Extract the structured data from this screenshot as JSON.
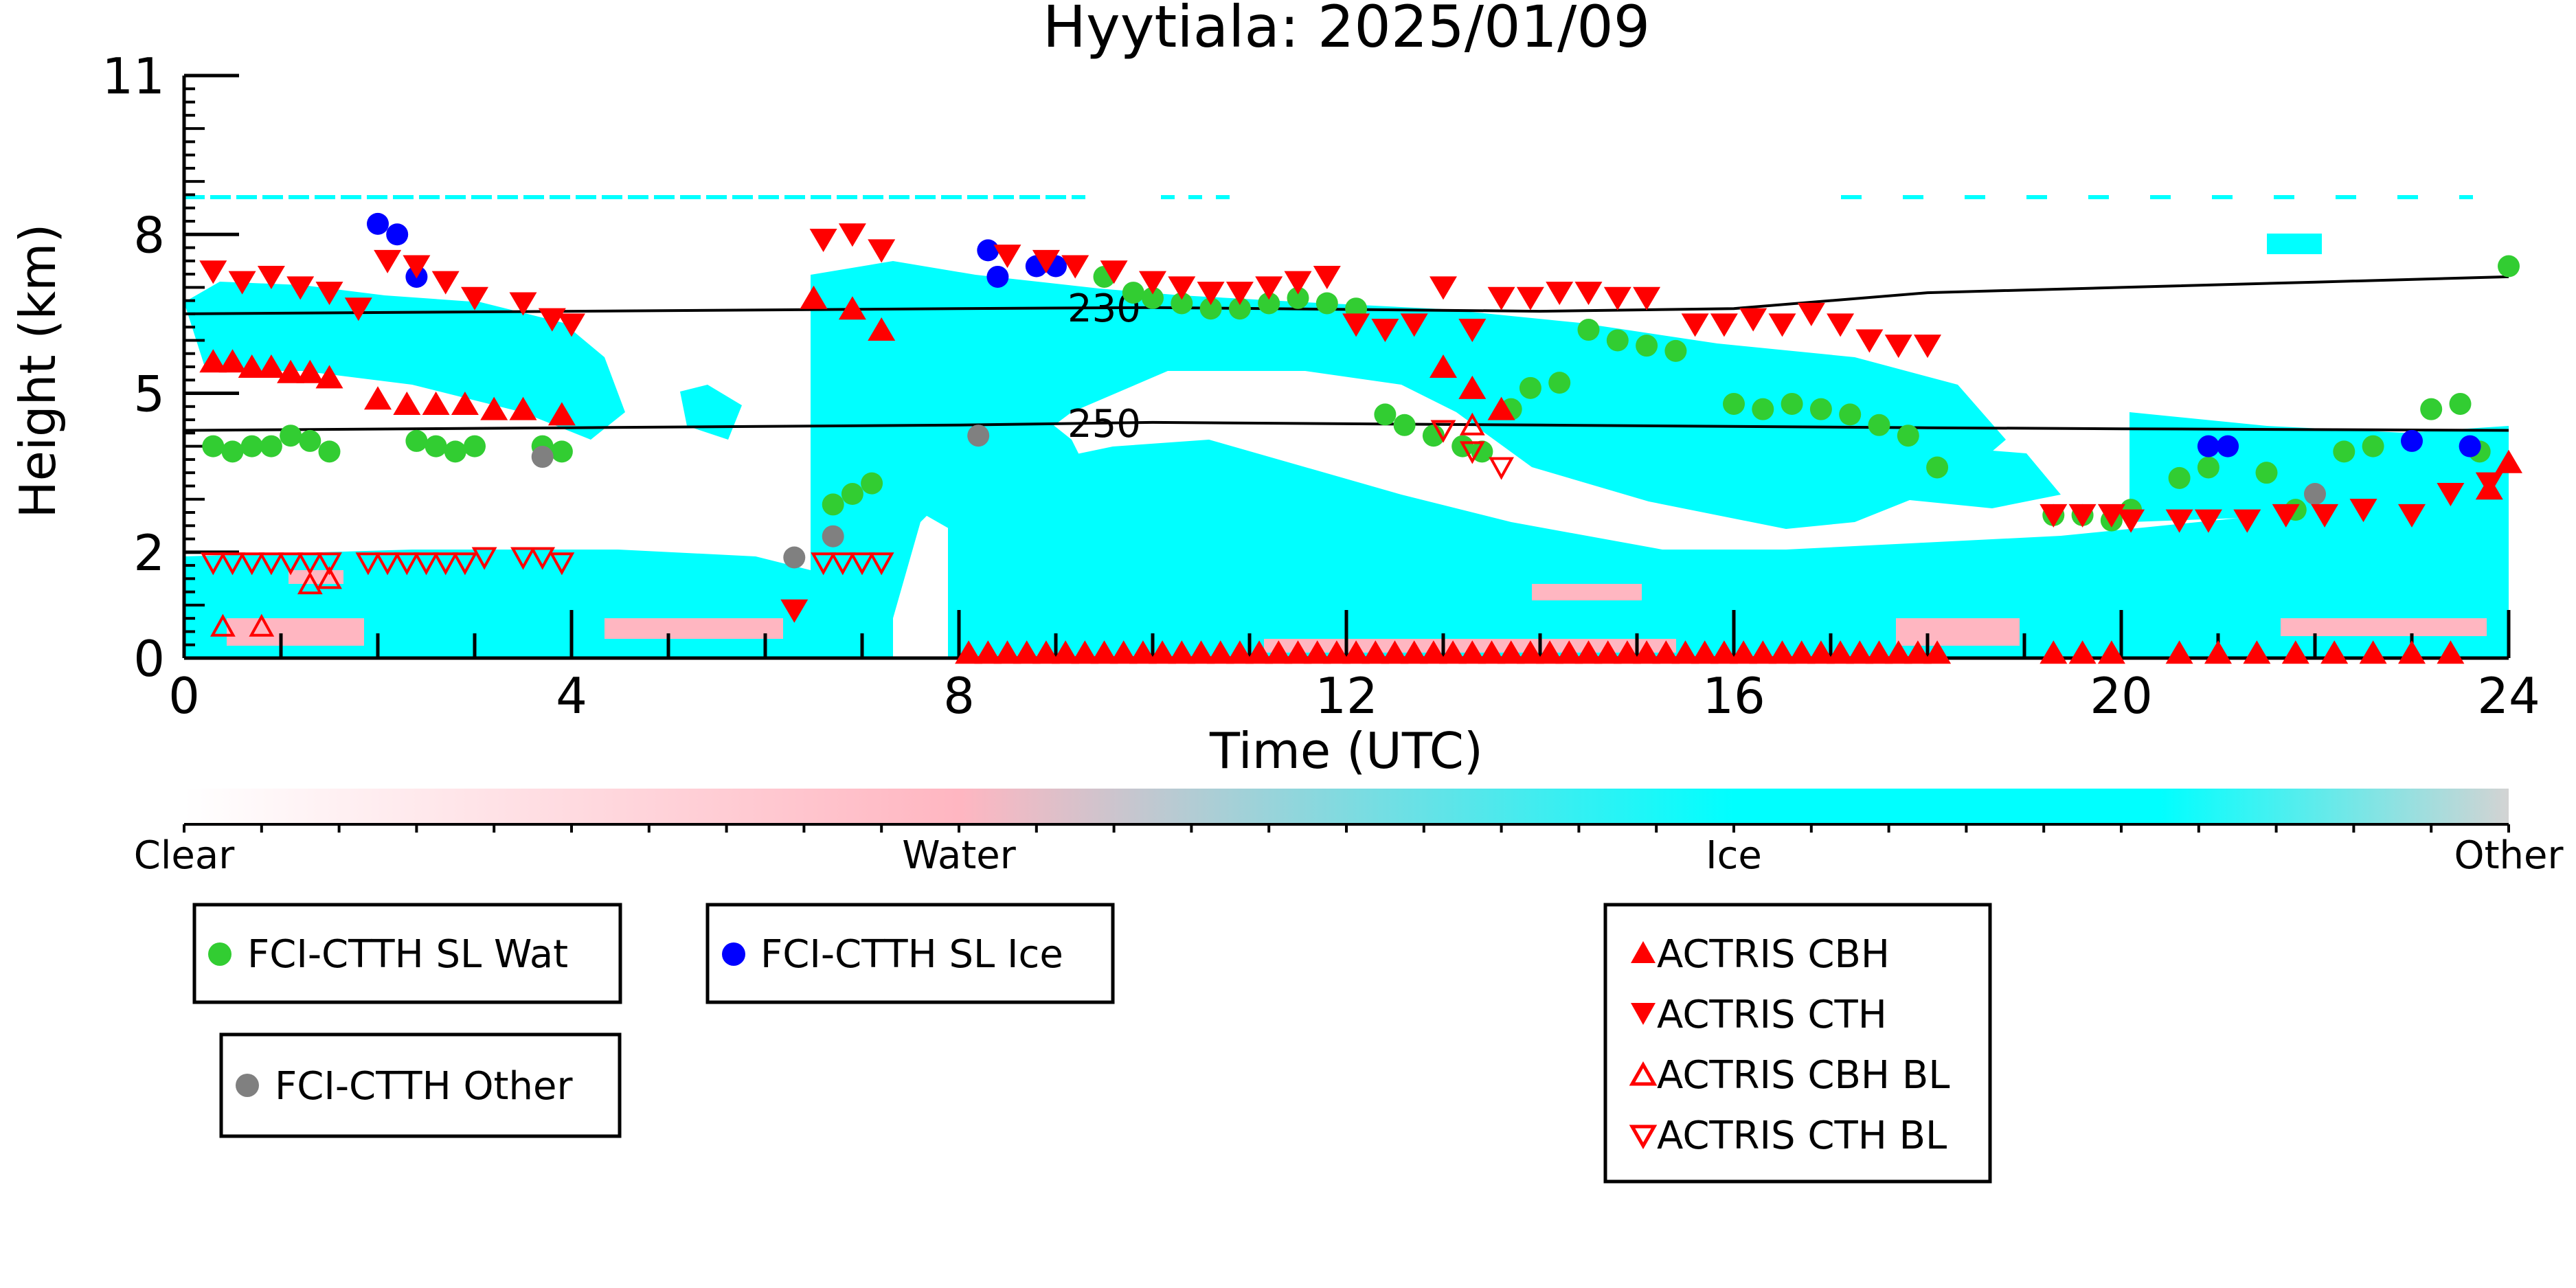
{
  "chart_data": {
    "type": "scatter",
    "title": "Hyytiala: 2025/01/09",
    "xlabel": "Time (UTC)",
    "ylabel": "Height (km)",
    "xlim": [
      0,
      24
    ],
    "ylim": [
      0,
      11
    ],
    "x_ticks": [
      0,
      4,
      8,
      12,
      16,
      20,
      24
    ],
    "y_ticks": [
      0,
      2,
      5,
      8,
      11
    ],
    "contours": [
      {
        "label": "230",
        "x": [
          0,
          4,
          8,
          10,
          14,
          16,
          18,
          20,
          22,
          24
        ],
        "y": [
          6.5,
          6.55,
          6.6,
          6.62,
          6.55,
          6.6,
          6.9,
          7.0,
          7.1,
          7.2
        ],
        "label_x": 9.5
      },
      {
        "label": "250",
        "x": [
          0,
          4,
          8,
          10,
          14,
          18,
          20,
          24
        ],
        "y": [
          4.3,
          4.35,
          4.4,
          4.45,
          4.4,
          4.35,
          4.33,
          4.3
        ],
        "label_x": 9.5
      }
    ],
    "colorbar": {
      "labels": [
        "Clear",
        "Water",
        "Ice",
        "Other"
      ],
      "colors": [
        "#ffffff",
        "#ffb6c1",
        "#00ffff",
        "#d3d3d3"
      ]
    },
    "series": [
      {
        "name": "FCI-CTTH SL Wat",
        "marker": "circle",
        "color": "#32cd32",
        "x": [
          0.3,
          0.5,
          0.7,
          0.9,
          1.1,
          1.3,
          1.5,
          2.4,
          2.6,
          2.8,
          3.0,
          3.7,
          3.9,
          6.7,
          6.9,
          7.1,
          9.5,
          9.8,
          10.0,
          10.3,
          10.6,
          10.9,
          11.2,
          11.5,
          11.8,
          12.1,
          12.4,
          12.6,
          12.9,
          13.2,
          13.4,
          13.7,
          13.9,
          14.2,
          14.5,
          14.8,
          15.1,
          15.4,
          16.0,
          16.3,
          16.6,
          16.9,
          17.2,
          17.5,
          17.8,
          18.1,
          19.3,
          19.6,
          19.9,
          20.1,
          20.6,
          20.9,
          21.5,
          21.8,
          22.3,
          22.6,
          23.2,
          23.5,
          23.7,
          24.0
        ],
        "y": [
          4.0,
          3.9,
          4.0,
          4.0,
          4.2,
          4.1,
          3.9,
          4.1,
          4.0,
          3.9,
          4.0,
          4.0,
          3.9,
          2.9,
          3.1,
          3.3,
          7.2,
          6.9,
          6.8,
          6.7,
          6.6,
          6.6,
          6.7,
          6.8,
          6.7,
          6.6,
          4.6,
          4.4,
          4.2,
          4.0,
          3.9,
          4.7,
          5.1,
          5.2,
          6.2,
          6.0,
          5.9,
          5.8,
          4.8,
          4.7,
          4.8,
          4.7,
          4.6,
          4.4,
          4.2,
          3.6,
          2.7,
          2.7,
          2.6,
          2.8,
          3.4,
          3.6,
          3.5,
          2.8,
          3.9,
          4.0,
          4.7,
          4.8,
          3.9,
          7.4
        ]
      },
      {
        "name": "FCI-CTTH SL Ice",
        "marker": "circle",
        "color": "#0000ff",
        "x": [
          2.0,
          2.2,
          2.4,
          8.3,
          8.4,
          8.8,
          9.0,
          20.9,
          21.1,
          23.0,
          23.6
        ],
        "y": [
          8.2,
          8.0,
          7.2,
          7.7,
          7.2,
          7.4,
          7.4,
          4.0,
          4.0,
          4.1,
          4.0
        ]
      },
      {
        "name": "FCI-CTTH Other",
        "marker": "circle",
        "color": "#808080",
        "x": [
          3.7,
          6.3,
          6.7,
          8.2,
          22.0
        ],
        "y": [
          3.8,
          1.9,
          2.3,
          4.2,
          3.1
        ]
      },
      {
        "name": "ACTRIS CBH",
        "marker": "triangle-up",
        "color": "#ff0000",
        "x": [
          0.3,
          0.5,
          0.7,
          0.9,
          1.1,
          1.3,
          1.5,
          2.0,
          2.3,
          2.6,
          2.9,
          3.2,
          3.5,
          3.9,
          6.5,
          6.9,
          7.2,
          13.0,
          13.3,
          13.6,
          8.1,
          8.3,
          8.5,
          8.7,
          8.9,
          9.1,
          9.3,
          9.5,
          9.7,
          9.9,
          10.1,
          10.3,
          10.5,
          10.7,
          10.9,
          11.1,
          11.3,
          11.5,
          11.7,
          11.9,
          12.1,
          12.3,
          12.5,
          12.7,
          12.9,
          13.1,
          13.3,
          13.5,
          13.7,
          13.9,
          14.1,
          14.3,
          14.5,
          14.7,
          14.9,
          15.1,
          15.3,
          15.5,
          15.7,
          15.9,
          16.1,
          16.3,
          16.5,
          16.7,
          16.9,
          17.1,
          17.3,
          17.5,
          17.7,
          17.9,
          18.1,
          19.3,
          19.6,
          19.9,
          20.6,
          21.0,
          21.4,
          21.8,
          22.2,
          22.6,
          23.0,
          23.4,
          23.8,
          24.0
        ],
        "y": [
          5.6,
          5.6,
          5.5,
          5.5,
          5.4,
          5.4,
          5.3,
          4.9,
          4.8,
          4.8,
          4.8,
          4.7,
          4.7,
          4.6,
          6.8,
          6.6,
          6.2,
          5.5,
          5.1,
          4.7,
          0.1,
          0.1,
          0.1,
          0.1,
          0.1,
          0.1,
          0.1,
          0.1,
          0.1,
          0.1,
          0.1,
          0.1,
          0.1,
          0.1,
          0.1,
          0.1,
          0.1,
          0.1,
          0.1,
          0.1,
          0.1,
          0.1,
          0.1,
          0.1,
          0.1,
          0.1,
          0.1,
          0.1,
          0.1,
          0.1,
          0.1,
          0.1,
          0.1,
          0.1,
          0.1,
          0.1,
          0.1,
          0.1,
          0.1,
          0.1,
          0.1,
          0.1,
          0.1,
          0.1,
          0.1,
          0.1,
          0.1,
          0.1,
          0.1,
          0.1,
          0.1,
          0.1,
          0.1,
          0.1,
          0.1,
          0.1,
          0.1,
          0.1,
          0.1,
          0.1,
          0.1,
          0.1,
          3.2,
          3.7
        ]
      },
      {
        "name": "ACTRIS CTH",
        "marker": "triangle-down",
        "color": "#ff0000",
        "x": [
          0.3,
          0.6,
          0.9,
          1.2,
          1.5,
          1.8,
          2.1,
          2.4,
          2.7,
          3.0,
          3.5,
          3.8,
          4.0,
          6.6,
          6.9,
          7.2,
          8.5,
          8.9,
          9.2,
          9.6,
          10.0,
          10.3,
          10.6,
          10.9,
          11.2,
          11.5,
          11.8,
          12.1,
          12.4,
          12.7,
          13.0,
          13.3,
          13.6,
          13.9,
          14.2,
          14.5,
          14.8,
          15.1,
          15.6,
          15.9,
          16.2,
          16.5,
          16.8,
          17.1,
          17.4,
          17.7,
          18.0,
          19.3,
          19.6,
          19.9,
          20.1,
          20.6,
          20.9,
          21.3,
          21.7,
          22.1,
          22.5,
          23.0,
          23.4,
          23.8,
          6.3
        ],
        "y": [
          7.3,
          7.1,
          7.2,
          7.0,
          6.9,
          6.6,
          7.5,
          7.4,
          7.1,
          6.8,
          6.7,
          6.4,
          6.3,
          7.9,
          8.0,
          7.7,
          7.6,
          7.5,
          7.4,
          7.3,
          7.1,
          7.0,
          6.9,
          6.9,
          7.0,
          7.1,
          7.2,
          6.3,
          6.2,
          6.3,
          7.0,
          6.2,
          6.8,
          6.8,
          6.9,
          6.9,
          6.8,
          6.8,
          6.3,
          6.3,
          6.4,
          6.3,
          6.5,
          6.3,
          6.0,
          5.9,
          5.9,
          2.7,
          2.7,
          2.7,
          2.6,
          2.6,
          2.6,
          2.6,
          2.7,
          2.7,
          2.8,
          2.7,
          3.1,
          3.3,
          0.9
        ]
      },
      {
        "name": "ACTRIS CBH BL",
        "marker": "triangle-up-open",
        "color": "#ff0000",
        "x": [
          0.4,
          0.8,
          1.3,
          1.5,
          13.3
        ],
        "y": [
          0.6,
          0.6,
          1.4,
          1.5,
          4.4
        ]
      },
      {
        "name": "ACTRIS CTH BL",
        "marker": "triangle-down-open",
        "color": "#ff0000",
        "x": [
          0.3,
          0.5,
          0.7,
          0.9,
          1.1,
          1.3,
          1.5,
          1.9,
          2.1,
          2.3,
          2.5,
          2.7,
          2.9,
          3.1,
          3.5,
          3.7,
          3.9,
          6.6,
          6.8,
          7.0,
          7.2,
          13.0,
          13.3,
          13.6
        ],
        "y": [
          1.8,
          1.8,
          1.8,
          1.8,
          1.8,
          1.8,
          1.8,
          1.8,
          1.8,
          1.8,
          1.8,
          1.8,
          1.8,
          1.9,
          1.9,
          1.9,
          1.8,
          1.8,
          1.8,
          1.8,
          1.8,
          4.3,
          3.9,
          3.6
        ]
      }
    ]
  }
}
